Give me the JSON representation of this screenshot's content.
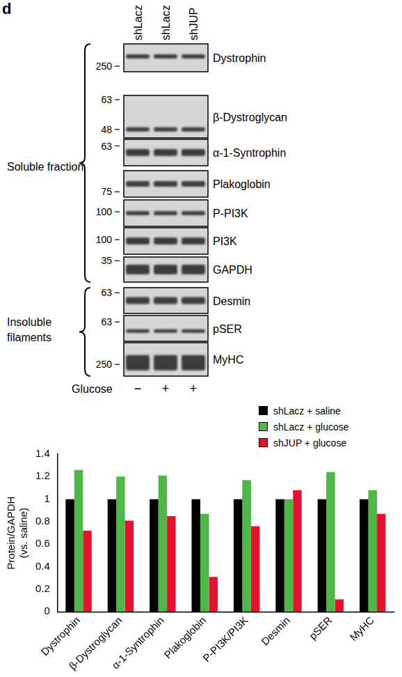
{
  "panel_label": "d",
  "blot": {
    "lanes": [
      "shLacz",
      "shLacz",
      "shJUP"
    ],
    "groups": [
      {
        "label": "Soluble fraction",
        "bands": [
          {
            "name": "Dystrophin",
            "markers": [
              250
            ]
          },
          {
            "name": "β-Dystroglycan",
            "markers": [
              63,
              48
            ]
          },
          {
            "name": "α-1-Syntrophin",
            "markers": [
              63
            ]
          },
          {
            "name": "Plakoglobin",
            "markers": [
              75
            ]
          },
          {
            "name": "P-PI3K",
            "markers": [
              100
            ]
          },
          {
            "name": "PI3K",
            "markers": [
              100
            ]
          },
          {
            "name": "GAPDH",
            "markers": [
              35
            ]
          }
        ]
      },
      {
        "label": "Insoluble\nfilaments",
        "bands": [
          {
            "name": "Desmin",
            "markers": [
              63
            ]
          },
          {
            "name": "pSER",
            "markers": [
              63
            ]
          },
          {
            "name": "MyHC",
            "markers": [
              250
            ]
          }
        ]
      }
    ],
    "treatment": {
      "label": "Glucose",
      "values": [
        "−",
        "+",
        "+"
      ]
    }
  },
  "chart_data": {
    "type": "bar",
    "y_label": "Protein/GAPDH\n(vs. saline)",
    "categories": [
      "Dystrophin",
      "β-Dystroglycan",
      "α-1-Syntrophin",
      "Plakoglobin",
      "P-PI3K/PI3K",
      "Desmin",
      "pSER",
      "MyHC"
    ],
    "series": [
      {
        "name": "shLacz + saline",
        "color": "#000000",
        "values": [
          1,
          1,
          1,
          1,
          1,
          1,
          1,
          1
        ]
      },
      {
        "name": "shLacz + glucose",
        "color": "#4db848",
        "values": [
          1.26,
          1.2,
          1.21,
          0.87,
          1.17,
          1.0,
          1.24,
          1.08
        ]
      },
      {
        "name": "shJUP + glucose",
        "color": "#e8112d",
        "values": [
          0.72,
          0.81,
          0.85,
          0.31,
          0.76,
          1.08,
          0.11,
          0.87
        ]
      }
    ],
    "ylim": [
      0,
      1.4
    ],
    "yticks": [
      0,
      0.2,
      0.4,
      0.6,
      0.8,
      1,
      1.2,
      1.4
    ],
    "grid": false,
    "legend": "upper right"
  }
}
